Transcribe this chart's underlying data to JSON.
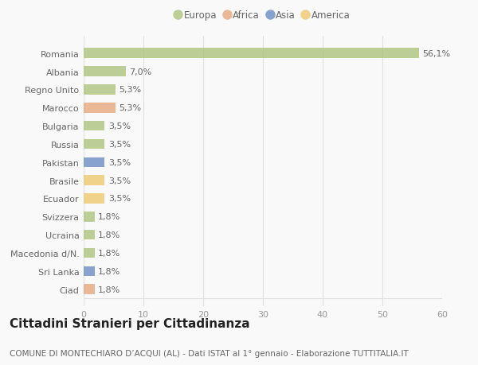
{
  "countries": [
    "Romania",
    "Albania",
    "Regno Unito",
    "Marocco",
    "Bulgaria",
    "Russia",
    "Pakistan",
    "Brasile",
    "Ecuador",
    "Svizzera",
    "Ucraina",
    "Macedonia d/N.",
    "Sri Lanka",
    "Ciad"
  ],
  "values": [
    56.1,
    7.0,
    5.3,
    5.3,
    3.5,
    3.5,
    3.5,
    3.5,
    3.5,
    1.8,
    1.8,
    1.8,
    1.8,
    1.8
  ],
  "continents": [
    "Europa",
    "Europa",
    "Europa",
    "Africa",
    "Europa",
    "Europa",
    "Asia",
    "America",
    "America",
    "Europa",
    "Europa",
    "Europa",
    "Asia",
    "Africa"
  ],
  "continent_colors": {
    "Europa": "#adc47d",
    "Africa": "#e8a87c",
    "Asia": "#6b8dc4",
    "America": "#f0c96e"
  },
  "legend_order": [
    "Europa",
    "Africa",
    "Asia",
    "America"
  ],
  "xlim": [
    0,
    60
  ],
  "xticks": [
    0,
    10,
    20,
    30,
    40,
    50,
    60
  ],
  "title": "Cittadini Stranieri per Cittadinanza",
  "subtitle": "COMUNE DI MONTECHIARO D’ACQUI (AL) - Dati ISTAT al 1° gennaio - Elaborazione TUTTITALIA.IT",
  "bg_color": "#f9f9f9",
  "grid_color": "#e0e0e0",
  "bar_height": 0.55,
  "label_fontsize": 8.0,
  "title_fontsize": 11,
  "subtitle_fontsize": 7.5
}
